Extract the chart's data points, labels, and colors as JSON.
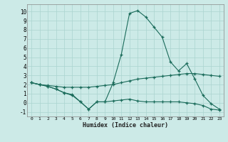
{
  "xlabel": "Humidex (Indice chaleur)",
  "bg_color": "#cceae7",
  "grid_color": "#aad4d0",
  "line_color": "#1a6b5a",
  "xlim": [
    -0.5,
    23.5
  ],
  "ylim": [
    -1.5,
    10.8
  ],
  "xticks": [
    0,
    1,
    2,
    3,
    4,
    5,
    6,
    7,
    8,
    9,
    10,
    11,
    12,
    13,
    14,
    15,
    16,
    17,
    18,
    19,
    20,
    21,
    22,
    23
  ],
  "yticks": [
    -1,
    0,
    1,
    2,
    3,
    4,
    5,
    6,
    7,
    8,
    9,
    10
  ],
  "series": [
    [
      2.2,
      2.0,
      1.8,
      1.5,
      1.1,
      0.9,
      0.1,
      -0.7,
      0.1,
      0.1,
      2.2,
      5.3,
      9.8,
      10.1,
      9.4,
      8.3,
      7.2,
      4.5,
      3.5,
      4.3,
      2.6,
      0.8,
      -0.1,
      -0.7
    ],
    [
      2.2,
      2.0,
      1.9,
      1.8,
      1.7,
      1.7,
      1.7,
      1.7,
      1.8,
      1.9,
      2.0,
      2.2,
      2.4,
      2.6,
      2.7,
      2.8,
      2.9,
      3.0,
      3.1,
      3.2,
      3.2,
      3.1,
      3.0,
      2.9
    ],
    [
      2.2,
      2.0,
      1.8,
      1.5,
      1.1,
      0.8,
      0.1,
      -0.7,
      0.1,
      0.1,
      0.2,
      0.3,
      0.4,
      0.2,
      0.1,
      0.1,
      0.1,
      0.1,
      0.1,
      0.0,
      -0.1,
      -0.3,
      -0.7,
      -0.8
    ]
  ]
}
